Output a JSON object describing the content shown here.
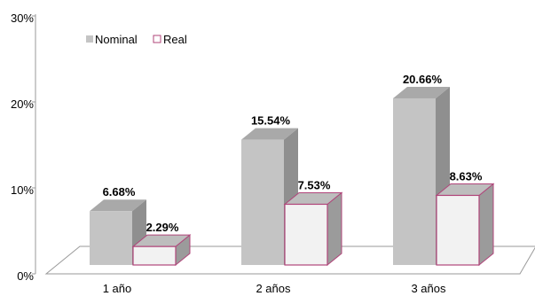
{
  "chart_data": {
    "type": "bar",
    "style": "3d-clustered-column",
    "categories": [
      "1 año",
      "2 años",
      "3 años"
    ],
    "series": [
      {
        "name": "Nominal",
        "values": [
          6.68,
          15.54,
          20.66
        ],
        "labels": [
          "6.68%",
          "15.54%",
          "20.66%"
        ],
        "color": "#c4c4c4"
      },
      {
        "name": "Real",
        "values": [
          2.29,
          7.53,
          8.63
        ],
        "labels": [
          "2.29%",
          "7.53%",
          "8.63%"
        ],
        "color": "#f2f2f2",
        "border": "#b0457a"
      }
    ],
    "ylim": [
      0,
      30
    ],
    "yticks": [
      "0%",
      "10%",
      "20%",
      "30%"
    ],
    "legend_position": "top-left",
    "grid": false
  }
}
